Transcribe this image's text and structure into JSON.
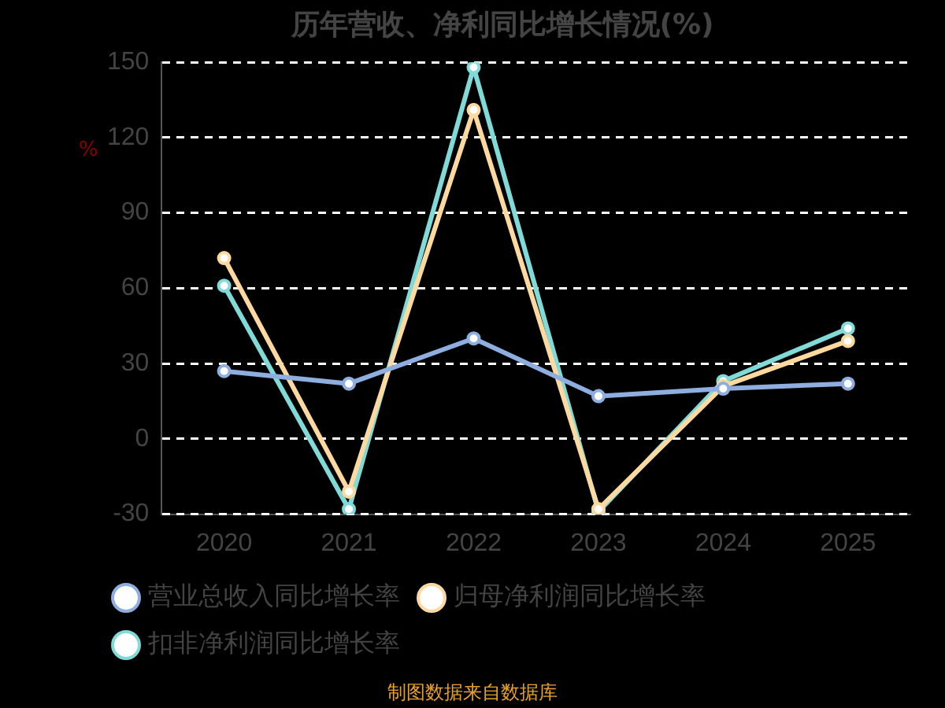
{
  "chart_data": {
    "type": "line",
    "title": "历年营收、净利同比增长情况(%)",
    "ylabel": "%",
    "categories": [
      "2020",
      "2021",
      "2022",
      "2023",
      "2024",
      "2025"
    ],
    "series": [
      {
        "name": "营业总收入同比增长率",
        "color": "#8eaee0",
        "values": [
          27,
          22,
          40,
          17,
          20,
          22
        ]
      },
      {
        "name": "归母净利润同比增长率",
        "color": "#fdd9a0",
        "values": [
          72,
          -21,
          131,
          -28,
          21,
          39
        ]
      },
      {
        "name": "扣非净利润同比增长率",
        "color": "#7fdad8",
        "values": [
          61,
          -28,
          148,
          -29,
          23,
          44
        ]
      }
    ],
    "ylim": [
      -30,
      150
    ],
    "yticks": [
      -30,
      0,
      30,
      60,
      90,
      120,
      150
    ],
    "grid": "y",
    "legend": "bottom",
    "marker": "circle",
    "line_style": "solid",
    "annotations": [
      "制图数据来自数据库"
    ]
  }
}
